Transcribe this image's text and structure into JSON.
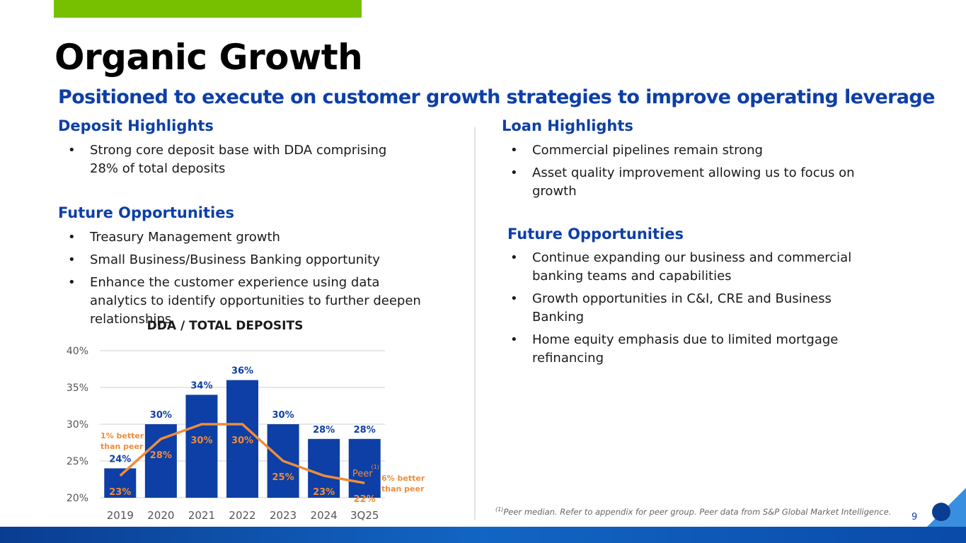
{
  "header": {
    "title": "Organic Growth",
    "subtitle": "Positioned to execute on customer growth strategies to improve operating leverage"
  },
  "left": {
    "heading": "Deposit Highlights",
    "bullets": [
      "Strong core deposit base with DDA comprising 28% of total deposits"
    ],
    "opportunities_heading": "Future Opportunities",
    "opportunities": [
      "Treasury Management growth",
      "Small Business/Business Banking opportunity",
      "Enhance the customer experience using data analytics to identify opportunities to further deepen relationships"
    ]
  },
  "right": {
    "heading": "Loan Highlights",
    "bullets": [
      "Commercial pipelines remain strong",
      "Asset quality improvement allowing us to focus on growth"
    ],
    "opportunities_heading": "Future Opportunities",
    "opportunities": [
      "Continue expanding our business and commercial banking teams and capabilities",
      "Growth opportunities in C&I, CRE and Business Banking",
      "Home equity emphasis due to limited mortgage refinancing"
    ]
  },
  "footnote": {
    "marker": "(1)",
    "text": "Peer median. Refer to appendix for peer group. Peer data from S&P Global Market Intelligence."
  },
  "page_number": "9",
  "chart_data": {
    "type": "bar",
    "title": "DDA / TOTAL DEPOSITS",
    "categories": [
      "2019",
      "2020",
      "2021",
      "2022",
      "2023",
      "2024",
      "3Q25"
    ],
    "series": [
      {
        "type": "bar",
        "color": "#0d3fa6",
        "values": [
          24,
          30,
          34,
          36,
          30,
          28,
          28
        ],
        "value_labels": [
          "24%",
          "30%",
          "34%",
          "36%",
          "30%",
          "28%",
          "28%"
        ]
      },
      {
        "type": "line",
        "name": "Peer",
        "name_note": "(1)",
        "color": "#f08c3a",
        "values": [
          23,
          28,
          30,
          30,
          25,
          23,
          22
        ],
        "value_labels": [
          "23%",
          "28%",
          "30%",
          "30%",
          "25%",
          "23%",
          "22%"
        ]
      }
    ],
    "ylim": [
      20,
      40
    ],
    "yticks": [
      {
        "value": 20,
        "label": "20%"
      },
      {
        "value": 25,
        "label": "25%"
      },
      {
        "value": 30,
        "label": "30%"
      },
      {
        "value": 35,
        "label": "35%"
      },
      {
        "value": 40,
        "label": "40%"
      }
    ],
    "grid": true,
    "annotations": [
      {
        "lines": [
          "1% better",
          "than peer"
        ]
      },
      {
        "lines": [
          "6% better",
          "than peer"
        ]
      }
    ]
  }
}
